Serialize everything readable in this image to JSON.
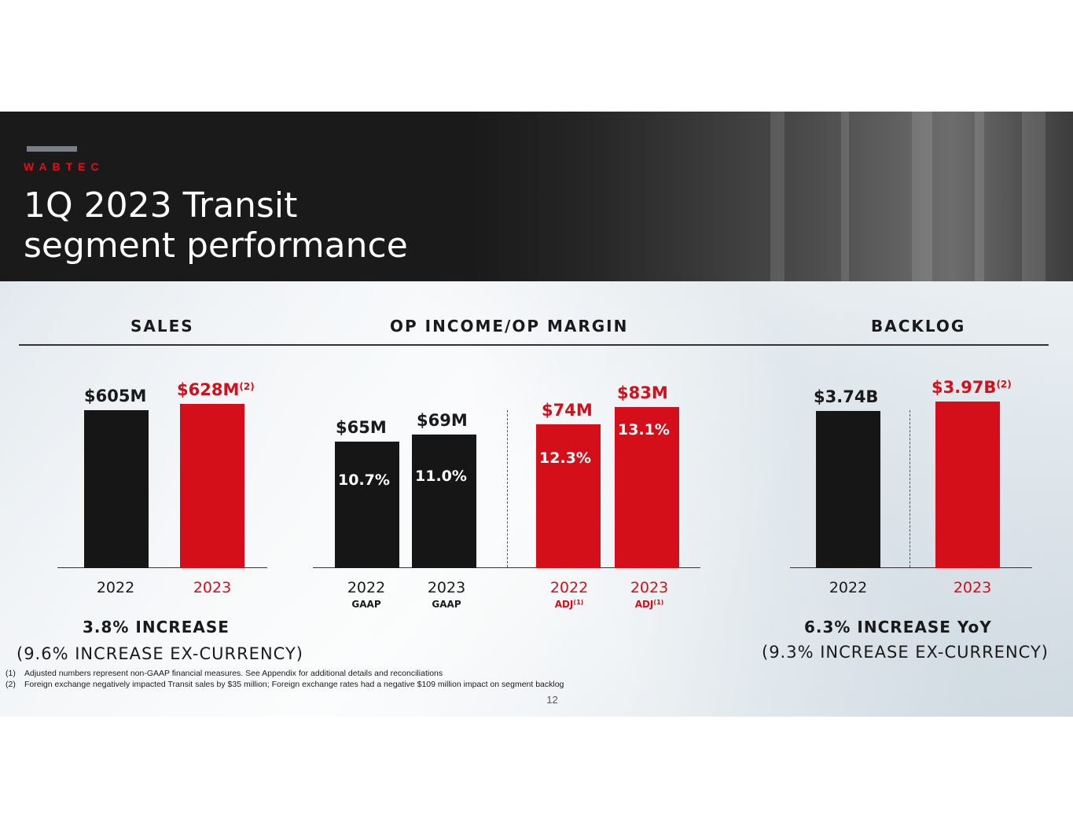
{
  "brand": {
    "logo_text": "WABTEC"
  },
  "header": {
    "title_line1": "1Q 2023 Transit",
    "title_line2": "segment performance"
  },
  "sections": {
    "sales": "SALES",
    "op_income": "OP INCOME/OP MARGIN",
    "backlog": "BACKLOG"
  },
  "colors": {
    "black": "#161616",
    "red": "#d50f19",
    "header_bg": "#1a1a1a"
  },
  "chart_data": [
    {
      "type": "bar",
      "title": "SALES",
      "unit": "$M",
      "categories": [
        "2022",
        "2023"
      ],
      "values": [
        605,
        628
      ],
      "labels": [
        "$605M",
        "$628M"
      ],
      "label_notes": [
        "",
        "(2)"
      ],
      "colors": [
        "#161616",
        "#d50f19"
      ]
    },
    {
      "type": "bar",
      "title": "OP INCOME/OP MARGIN",
      "unit": "$M",
      "categories": [
        "2022",
        "2023",
        "2022",
        "2023"
      ],
      "sublabels": [
        "GAAP",
        "GAAP",
        "ADJ",
        "ADJ"
      ],
      "sublabel_notes": [
        "",
        "",
        "(1)",
        "(1)"
      ],
      "values": [
        65,
        69,
        74,
        83
      ],
      "labels": [
        "$65M",
        "$69M",
        "$74M",
        "$83M"
      ],
      "margins": [
        "10.7%",
        "11.0%",
        "12.3%",
        "13.1%"
      ],
      "colors": [
        "#161616",
        "#161616",
        "#d50f19",
        "#d50f19"
      ]
    },
    {
      "type": "bar",
      "title": "BACKLOG",
      "unit": "$B",
      "categories": [
        "2022",
        "2023"
      ],
      "values": [
        3.74,
        3.97
      ],
      "labels": [
        "$3.74B",
        "$3.97B"
      ],
      "label_notes": [
        "",
        "(2)"
      ],
      "colors": [
        "#161616",
        "#d50f19"
      ]
    }
  ],
  "summary": {
    "sales_main": "3.8% INCREASE",
    "sales_sub": "(9.6% INCREASE EX-CURRENCY)",
    "backlog_main": "6.3% INCREASE YoY",
    "backlog_sub": "(9.3% INCREASE EX-CURRENCY)"
  },
  "footnotes": [
    {
      "num": "(1)",
      "text": "Adjusted numbers represent non-GAAP financial measures. See Appendix for additional details and reconciliations"
    },
    {
      "num": "(2)",
      "text": "Foreign exchange negatively impacted Transit sales by $35 million; Foreign exchange rates had a negative $109 million impact on segment backlog"
    }
  ],
  "page_number": "12"
}
